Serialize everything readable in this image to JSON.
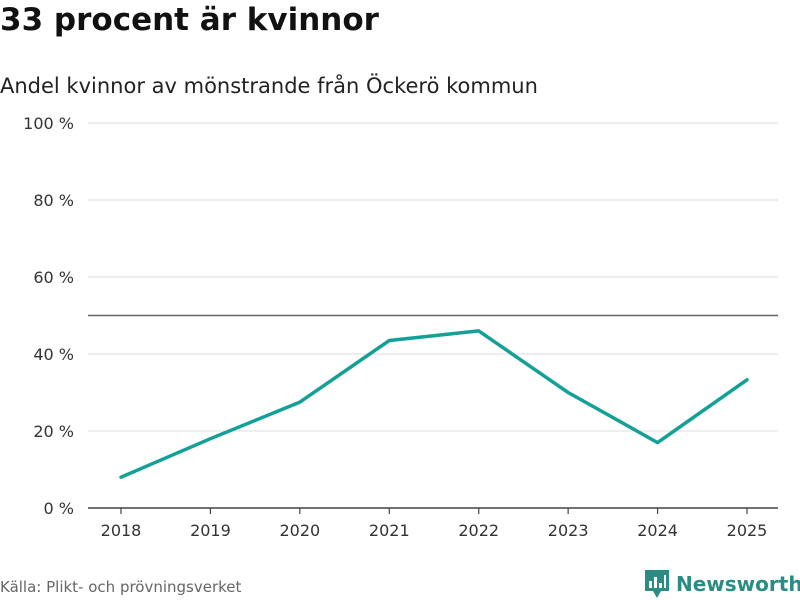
{
  "chart_data": {
    "type": "line",
    "title": "33 procent är kvinnor",
    "subtitle": "Andel kvinnor av mönstrande från Öckerö kommun",
    "categories": [
      "2018",
      "2019",
      "2020",
      "2021",
      "2022",
      "2023",
      "2024",
      "2025"
    ],
    "series": [
      {
        "name": "Andel kvinnor",
        "values": [
          8,
          18,
          27.5,
          43.5,
          46,
          30,
          17,
          33.3
        ]
      }
    ],
    "ylim": [
      0,
      100
    ],
    "yticks": [
      0,
      20,
      40,
      60,
      80,
      100
    ],
    "ytick_labels": [
      "0 %",
      "20 %",
      "40 %",
      "60 %",
      "80 %",
      "100 %"
    ],
    "reference_line": 50,
    "xlabel": "",
    "ylabel": "",
    "grid": true,
    "line_color": "#13a096",
    "reference_color": "#666666"
  },
  "source": "Källa: Plikt- och prövningsverket",
  "brand": {
    "name": "Newsworthy",
    "icon": "newsworthy-logo-icon",
    "color": "#2a8c82"
  }
}
